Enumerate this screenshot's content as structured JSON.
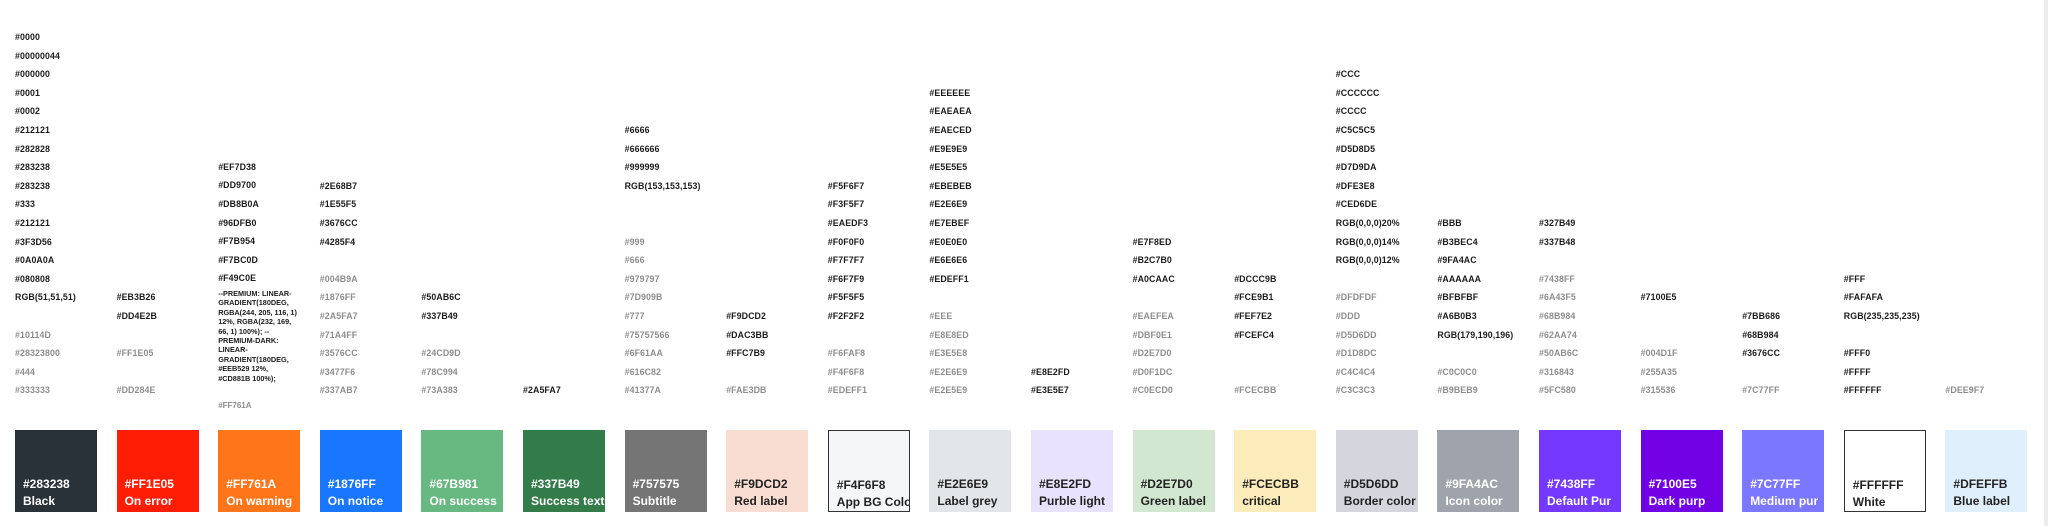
{
  "columns": [
    {
      "swatch": {
        "hex": "#283238",
        "name": "Black",
        "color": "#283238",
        "tone": "dark"
      },
      "codes": [
        {
          "text": "#0000",
          "dim": false
        },
        {
          "text": "#00000044",
          "dim": false
        },
        {
          "text": "#000000",
          "dim": false
        },
        {
          "text": "#0001",
          "dim": false
        },
        {
          "text": "#0002",
          "dim": false
        },
        {
          "text": "#212121",
          "dim": false
        },
        {
          "text": "#282828",
          "dim": false
        },
        {
          "text": "#283238",
          "dim": false
        },
        {
          "text": "#283238",
          "dim": false
        },
        {
          "text": "#333",
          "dim": false
        },
        {
          "text": "#212121",
          "dim": false
        },
        {
          "text": "#3F3D56",
          "dim": false
        },
        {
          "text": "#0A0A0A",
          "dim": false
        },
        {
          "text": "#080808",
          "dim": false
        },
        {
          "text": "RGB(51,51,51)",
          "dim": false
        },
        {
          "text": "",
          "dim": false
        },
        {
          "text": "#10114D",
          "dim": true
        },
        {
          "text": "#28323800",
          "dim": true
        },
        {
          "text": "#444",
          "dim": true
        },
        {
          "text": "#333333",
          "dim": true
        }
      ]
    },
    {
      "swatch": {
        "hex": "#FF1E05",
        "name": "On error",
        "color": "#ff1e05",
        "tone": "dark"
      },
      "codes": [
        {
          "text": "#EB3B26",
          "dim": false
        },
        {
          "text": "#DD4E2B",
          "dim": false
        },
        {
          "text": "",
          "dim": false
        },
        {
          "text": "#FF1E05",
          "dim": true
        },
        {
          "text": "",
          "dim": false
        },
        {
          "text": "#DD284E",
          "dim": true
        }
      ]
    },
    {
      "swatch": {
        "hex": "#FF761A",
        "name": "On warning",
        "color": "#ff761a",
        "tone": "dark"
      },
      "codes": [
        {
          "text": "#EF7D38",
          "dim": false
        },
        {
          "text": "#DD9700",
          "dim": false
        },
        {
          "text": "#DB8B0A",
          "dim": false
        },
        {
          "text": "#96DFB0",
          "dim": false
        },
        {
          "text": "#F7B954",
          "dim": false
        },
        {
          "text": "#F7BC0D",
          "dim": false
        },
        {
          "text": "#F49C0E",
          "dim": false
        }
      ],
      "note": "--PREMIUM: LINEAR-GRADIENT(180DEG, RGBA(244, 205, 116, 1) 12%, RGBA(232, 169, 66, 1) 100%); --PREMIUM-DARK: LINEAR-GRADIENT(180DEG, #EEB529 12%, #CD881B 100%);",
      "note_sub": "#FF761A"
    },
    {
      "swatch": {
        "hex": "#1876FF",
        "name": "On notice",
        "color": "#1876ff",
        "tone": "dark"
      },
      "codes": [
        {
          "text": "#2E68B7",
          "dim": false
        },
        {
          "text": "#1E55F5",
          "dim": false
        },
        {
          "text": "#3676CC",
          "dim": false
        },
        {
          "text": "#4285F4",
          "dim": false
        },
        {
          "text": "",
          "dim": false
        },
        {
          "text": "#004B9A",
          "dim": true
        },
        {
          "text": "#1876FF",
          "dim": true
        },
        {
          "text": "#2A5FA7",
          "dim": true
        },
        {
          "text": "#71A4FF",
          "dim": true
        },
        {
          "text": "#3576CC",
          "dim": true
        },
        {
          "text": "#3477F6",
          "dim": true
        },
        {
          "text": "#337AB7",
          "dim": true
        }
      ]
    },
    {
      "swatch": {
        "hex": "#67B981",
        "name": "On success",
        "color": "#67b981",
        "tone": "dark"
      },
      "codes": [
        {
          "text": "#50AB6C",
          "dim": false
        },
        {
          "text": "#337B49",
          "dim": false
        },
        {
          "text": "",
          "dim": false
        },
        {
          "text": "#24CD9D",
          "dim": true
        },
        {
          "text": "#78C994",
          "dim": true
        },
        {
          "text": "#73A383",
          "dim": true
        }
      ]
    },
    {
      "swatch": {
        "hex": "#337B49",
        "name": "Success text",
        "color": "#337b49",
        "tone": "dark"
      },
      "codes": [
        {
          "text": "#2A5FA7",
          "dim": false
        }
      ]
    },
    {
      "swatch": {
        "hex": "#757575",
        "name": "Subtitle",
        "color": "#757575",
        "tone": "dark"
      },
      "codes": [
        {
          "text": "#6666",
          "dim": false
        },
        {
          "text": "#666666",
          "dim": false
        },
        {
          "text": "#999999",
          "dim": false
        },
        {
          "text": "RGB(153,153,153)",
          "dim": false
        },
        {
          "text": "",
          "dim": false
        },
        {
          "text": "",
          "dim": false
        },
        {
          "text": "#999",
          "dim": true
        },
        {
          "text": "#666",
          "dim": true
        },
        {
          "text": "#979797",
          "dim": true
        },
        {
          "text": "#7D909B",
          "dim": true
        },
        {
          "text": "#777",
          "dim": true
        },
        {
          "text": "#75757566",
          "dim": true
        },
        {
          "text": "#6F61AA",
          "dim": true
        },
        {
          "text": "#616C82",
          "dim": true
        },
        {
          "text": "#41377A",
          "dim": true
        }
      ]
    },
    {
      "swatch": {
        "hex": "#F9DCD2",
        "name": "Red label",
        "color": "#f9dcd2",
        "tone": "light"
      },
      "codes": [
        {
          "text": "#F9DCD2",
          "dim": false
        },
        {
          "text": "#DAC3BB",
          "dim": false
        },
        {
          "text": "#FFC7B9",
          "dim": false
        },
        {
          "text": "",
          "dim": false
        },
        {
          "text": "#FAE3DB",
          "dim": true
        }
      ]
    },
    {
      "swatch": {
        "hex": "#F4F6F8",
        "name": "App BG Color",
        "color": "#f4f6f8",
        "tone": "light",
        "bordered": true
      },
      "codes": [
        {
          "text": "#F5F6F7",
          "dim": false
        },
        {
          "text": "#F3F5F7",
          "dim": false
        },
        {
          "text": "#EAEDF3",
          "dim": false
        },
        {
          "text": "#F0F0F0",
          "dim": false
        },
        {
          "text": "#F7F7F7",
          "dim": false
        },
        {
          "text": "#F6F7F9",
          "dim": false
        },
        {
          "text": "#F5F5F5",
          "dim": false
        },
        {
          "text": "#F2F2F2",
          "dim": false
        },
        {
          "text": "",
          "dim": false
        },
        {
          "text": "#F6FAF8",
          "dim": true
        },
        {
          "text": "#F4F6F8",
          "dim": true
        },
        {
          "text": "#EDEFF1",
          "dim": true
        }
      ]
    },
    {
      "swatch": {
        "hex": "#E2E6E9",
        "name": "Label grey",
        "color": "#e2e6e9",
        "tone": "light"
      },
      "codes": [
        {
          "text": "#EEEEEE",
          "dim": false
        },
        {
          "text": "#EAEAEA",
          "dim": false
        },
        {
          "text": "#EAECED",
          "dim": false
        },
        {
          "text": "#E9E9E9",
          "dim": false
        },
        {
          "text": "#E5E5E5",
          "dim": false
        },
        {
          "text": "#EBEBEB",
          "dim": false
        },
        {
          "text": "#E2E6E9",
          "dim": false
        },
        {
          "text": "#E7EBEF",
          "dim": false
        },
        {
          "text": "#E0E0E0",
          "dim": false
        },
        {
          "text": "#E6E6E6",
          "dim": false
        },
        {
          "text": "#EDEFF1",
          "dim": false
        },
        {
          "text": "",
          "dim": false
        },
        {
          "text": "#EEE",
          "dim": true
        },
        {
          "text": "#E8E8ED",
          "dim": true
        },
        {
          "text": "#E3E5E8",
          "dim": true
        },
        {
          "text": "#E2E6E9",
          "dim": true
        },
        {
          "text": "#E2E5E9",
          "dim": true
        }
      ]
    },
    {
      "swatch": {
        "hex": "#E8E2FD",
        "name": "Purble light",
        "color": "#e8e2fd",
        "tone": "light"
      },
      "codes": [
        {
          "text": "#E8E2FD",
          "dim": false
        },
        {
          "text": "#E3E5E7",
          "dim": false
        }
      ]
    },
    {
      "swatch": {
        "hex": "#D2E7D0",
        "name": "Green label",
        "color": "#d2e7d0",
        "tone": "light"
      },
      "codes": [
        {
          "text": "#E7F8ED",
          "dim": false
        },
        {
          "text": "#B2C7B0",
          "dim": false
        },
        {
          "text": "#A0CAAC",
          "dim": false
        },
        {
          "text": "",
          "dim": false
        },
        {
          "text": "#EAEFEA",
          "dim": true
        },
        {
          "text": "#DBF0E1",
          "dim": true
        },
        {
          "text": "#D2E7D0",
          "dim": true
        },
        {
          "text": "#D0F1DC",
          "dim": true
        },
        {
          "text": "#C0ECD0",
          "dim": true
        }
      ]
    },
    {
      "swatch": {
        "hex": "#FCECBB",
        "name": "critical",
        "color": "#fcecbb",
        "tone": "light"
      },
      "codes": [
        {
          "text": "#DCCC9B",
          "dim": false
        },
        {
          "text": "#FCE9B1",
          "dim": false
        },
        {
          "text": "#FEF7E2",
          "dim": false
        },
        {
          "text": "#FCEFC4",
          "dim": false
        },
        {
          "text": "",
          "dim": false
        },
        {
          "text": "",
          "dim": false
        },
        {
          "text": "#FCECBB",
          "dim": true
        }
      ]
    },
    {
      "swatch": {
        "hex": "#D5D6DD",
        "name": "Border color",
        "color": "#d5d6dd",
        "tone": "light"
      },
      "codes": [
        {
          "text": "#CCC",
          "dim": false
        },
        {
          "text": "#CCCCCC",
          "dim": false
        },
        {
          "text": "#CCCC",
          "dim": false
        },
        {
          "text": "#C5C5C5",
          "dim": false
        },
        {
          "text": "#D5D8D5",
          "dim": false
        },
        {
          "text": "#D7D9DA",
          "dim": false
        },
        {
          "text": "#DFE3E8",
          "dim": false
        },
        {
          "text": "#CED6DE",
          "dim": false
        },
        {
          "text": "RGB(0,0,0)20%",
          "dim": false
        },
        {
          "text": "RGB(0,0,0)14%",
          "dim": false
        },
        {
          "text": "RGB(0,0,0)12%",
          "dim": false
        },
        {
          "text": "",
          "dim": false
        },
        {
          "text": "#DFDFDF",
          "dim": true
        },
        {
          "text": "#DDD",
          "dim": true
        },
        {
          "text": "#D5D6DD",
          "dim": true
        },
        {
          "text": "#D1D8DC",
          "dim": true
        },
        {
          "text": "#C4C4C4",
          "dim": true
        },
        {
          "text": "#C3C3C3",
          "dim": true
        }
      ]
    },
    {
      "swatch": {
        "hex": "#9FA4AC",
        "name": "Icon color",
        "color": "#9fa4ac",
        "tone": "dark"
      },
      "codes": [
        {
          "text": "#BBB",
          "dim": false
        },
        {
          "text": "#B3BEC4",
          "dim": false
        },
        {
          "text": "#9FA4AC",
          "dim": false
        },
        {
          "text": "#AAAAAA",
          "dim": false
        },
        {
          "text": "#BFBFBF",
          "dim": false
        },
        {
          "text": "#A6B0B3",
          "dim": false
        },
        {
          "text": "RGB(179,190,196)",
          "dim": false
        },
        {
          "text": "",
          "dim": false
        },
        {
          "text": "#C0C0C0",
          "dim": true
        },
        {
          "text": "#B9BEB9",
          "dim": true
        }
      ]
    },
    {
      "swatch": {
        "hex": "#7438FF",
        "name": "Default Pur",
        "color": "#7438ff",
        "tone": "dark"
      },
      "codes": [
        {
          "text": "#327B49",
          "dim": false
        },
        {
          "text": "#337B48",
          "dim": false
        },
        {
          "text": "",
          "dim": false
        },
        {
          "text": "#7438FF",
          "dim": true
        },
        {
          "text": "#6A43F5",
          "dim": true
        },
        {
          "text": "#68B984",
          "dim": true
        },
        {
          "text": "#62AA74",
          "dim": true
        },
        {
          "text": "#50AB6C",
          "dim": true
        },
        {
          "text": "#316843",
          "dim": true
        },
        {
          "text": "#5FC580",
          "dim": true
        }
      ]
    },
    {
      "swatch": {
        "hex": "#7100E5",
        "name": "Dark purp",
        "color": "#7100e5",
        "tone": "dark"
      },
      "codes": [
        {
          "text": "#7100E5",
          "dim": false
        },
        {
          "text": "",
          "dim": false
        },
        {
          "text": "",
          "dim": false
        },
        {
          "text": "#004D1F",
          "dim": true
        },
        {
          "text": "#255A35",
          "dim": true
        },
        {
          "text": "#315536",
          "dim": true
        }
      ]
    },
    {
      "swatch": {
        "hex": "#7C77FF",
        "name": "Medium pur",
        "color": "#7c77ff",
        "tone": "dark"
      },
      "codes": [
        {
          "text": "#7BB686",
          "dim": false
        },
        {
          "text": "#68B984",
          "dim": false
        },
        {
          "text": "#3676CC",
          "dim": false
        },
        {
          "text": "",
          "dim": false
        },
        {
          "text": "#7C77FF",
          "dim": true
        }
      ]
    },
    {
      "swatch": {
        "hex": "#FFFFFF",
        "name": "White",
        "color": "#ffffff",
        "tone": "light",
        "bordered": true
      },
      "codes": [
        {
          "text": "#FFF",
          "dim": false
        },
        {
          "text": "#FAFAFA",
          "dim": false
        },
        {
          "text": "RGB(235,235,235)",
          "dim": false
        },
        {
          "text": "",
          "dim": false
        },
        {
          "text": "#FFF0",
          "dim": false
        },
        {
          "text": "#FFFF",
          "dim": false
        },
        {
          "text": "#FFFFFF",
          "dim": false
        }
      ]
    },
    {
      "swatch": {
        "hex": "#DFEFFB",
        "name": "Blue label",
        "color": "#dfeffb",
        "tone": "light"
      },
      "codes": [
        {
          "text": "#DEE9F7",
          "dim": true
        }
      ]
    }
  ]
}
